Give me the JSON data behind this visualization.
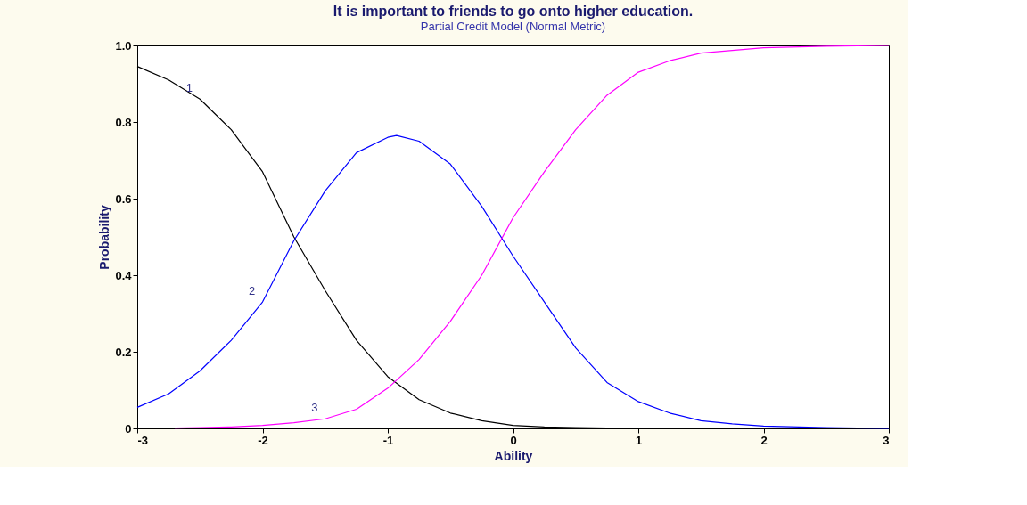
{
  "chart_data": {
    "type": "line",
    "title": "It is important to friends to go onto higher education.",
    "subtitle": "Partial Credit Model (Normal Metric)",
    "xlabel": "Ability",
    "ylabel": "Probability",
    "xlim": [
      -3,
      3
    ],
    "xticks": [
      -3,
      -2,
      -1,
      0,
      1,
      2,
      3
    ],
    "ylim": [
      0,
      1
    ],
    "yticks": [
      0,
      0.2,
      0.4,
      0.6,
      0.8,
      {
        "value": 1,
        "label": "1.0"
      }
    ],
    "grid": false,
    "legend": false,
    "marker": "none",
    "line_style": "solid",
    "series": [
      {
        "color": "#000000",
        "x": [
          -3,
          -2.75,
          -2.5,
          -2.25,
          -2,
          -1.75,
          -1.5,
          -1.25,
          -1,
          -0.75,
          -0.5,
          -0.25,
          0,
          0.25,
          0.5,
          0.75,
          1,
          1.5,
          2,
          2.5,
          3
        ],
        "values": [
          0.945,
          0.91,
          0.86,
          0.78,
          0.67,
          0.5,
          0.36,
          0.23,
          0.135,
          0.075,
          0.04,
          0.02,
          0.008,
          0.004,
          0.002,
          0.001,
          0,
          0,
          0,
          0,
          0
        ]
      },
      {
        "color": "#0000ff",
        "x": [
          -3,
          -2.75,
          -2.5,
          -2.25,
          -2,
          -1.75,
          -1.5,
          -1.25,
          -1,
          -0.93,
          -0.75,
          -0.5,
          -0.25,
          0,
          0.25,
          0.5,
          0.75,
          1,
          1.25,
          1.5,
          1.75,
          2,
          2.5,
          3
        ],
        "values": [
          0.055,
          0.09,
          0.15,
          0.23,
          0.33,
          0.49,
          0.62,
          0.72,
          0.76,
          0.765,
          0.75,
          0.69,
          0.58,
          0.45,
          0.33,
          0.21,
          0.12,
          0.07,
          0.04,
          0.02,
          0.012,
          0.006,
          0.002,
          0
        ]
      },
      {
        "color": "#ff00ff",
        "x": [
          -2.7,
          -2.5,
          -2.25,
          -2,
          -1.75,
          -1.5,
          -1.25,
          -1,
          -0.75,
          -0.5,
          -0.25,
          0,
          0.25,
          0.5,
          0.75,
          1,
          1.25,
          1.5,
          2,
          2.5,
          3
        ],
        "values": [
          0.001,
          0.002,
          0.004,
          0.008,
          0.015,
          0.025,
          0.05,
          0.105,
          0.18,
          0.28,
          0.4,
          0.55,
          0.67,
          0.78,
          0.87,
          0.93,
          0.96,
          0.98,
          0.994,
          0.998,
          1
        ]
      }
    ],
    "annotations": [
      {
        "text": "1",
        "x": -2.5,
        "y": 0.86
      },
      {
        "text": "2",
        "x": -2,
        "y": 0.33
      },
      {
        "text": "3",
        "x": -1.5,
        "y": 0.025
      }
    ]
  }
}
